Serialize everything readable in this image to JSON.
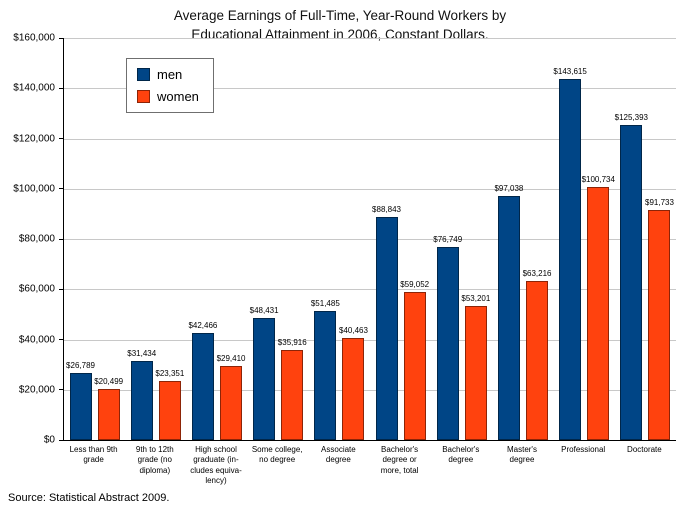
{
  "title_line1": "Average Earnings of Full-Time, Year-Round Workers by",
  "title_line2": "Educational Attainment in 2006, Constant Dollars.",
  "source": "Source: Statistical Abstract 2009.",
  "legend": [
    {
      "label": "men",
      "color": "#004586"
    },
    {
      "label": "women",
      "color": "#ff420e"
    }
  ],
  "chart_data": {
    "type": "bar",
    "title": "Average Earnings of Full-Time, Year-Round Workers by Educational Attainment in 2006, Constant Dollars.",
    "categories": [
      "Less than 9th\ngrade",
      "9th to 12th\ngrade (no\ndiploma)",
      "High school\ngraduate (in-\ncludes equiva-\nlency)",
      "Some college,\nno degree",
      "Associate\ndegree",
      "Bachelor's\ndegree or\nmore, total",
      "Bachelor's\ndegree",
      "Master's\ndegree",
      "Professional",
      "Doctorate"
    ],
    "series": [
      {
        "name": "men",
        "color": "#004586",
        "values": [
          26789,
          31434,
          42466,
          48431,
          51485,
          88843,
          76749,
          97038,
          143615,
          125393
        ]
      },
      {
        "name": "women",
        "color": "#ff420e",
        "values": [
          20499,
          23351,
          29410,
          35916,
          40463,
          59052,
          53201,
          63216,
          100734,
          91733
        ]
      }
    ],
    "ylim": [
      0,
      160000
    ],
    "ytick_step": 20000,
    "ytick_labels": [
      "$0",
      "$20,000",
      "$40,000",
      "$60,000",
      "$80,000",
      "$100,000",
      "$120,000",
      "$140,000",
      "$160,000"
    ],
    "grid": true,
    "legend_position": "top-left-inside",
    "value_label_format": "$#,###"
  }
}
